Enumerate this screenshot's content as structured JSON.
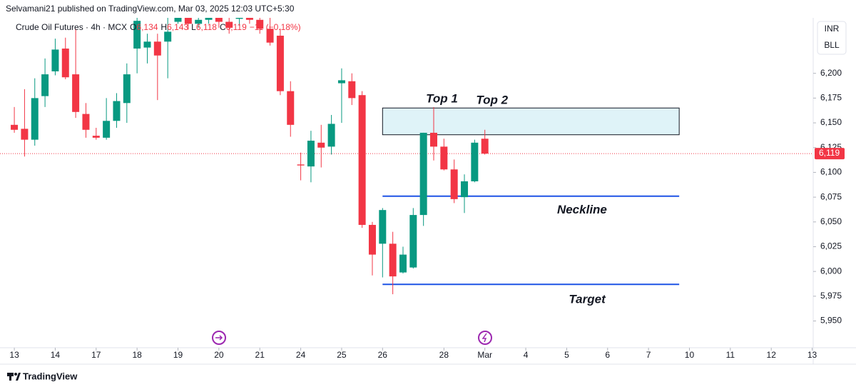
{
  "header": {
    "text": "Selvamani21 published on TradingView.com, Mar 03, 2025 12:03 UTC+5:30"
  },
  "footer": {
    "brand": "TradingView"
  },
  "scale_buttons": [
    "INR",
    "BLL"
  ],
  "chart_data": {
    "type": "candlestick",
    "legend": {
      "symbol": "Crude Oil Futures · 4h · MCX",
      "ohlc": [
        {
          "key": "O",
          "value": "6,134"
        },
        {
          "key": "H",
          "value": "6,143"
        },
        {
          "key": "L",
          "value": "6,118"
        },
        {
          "key": "C",
          "value": "6,119"
        }
      ],
      "change": "−11 (−0.18%)"
    },
    "up_color": "#089981",
    "down_color": "#f23645",
    "open": [
      6148,
      6144,
      6133,
      6177,
      6202,
      6225,
      6199,
      6159,
      6137,
      6135,
      6152,
      6170,
      6225,
      6226,
      6232,
      6232,
      6252,
      6256,
      6250,
      6254,
      6258,
      6252,
      6255,
      6257,
      6254,
      6245,
      6238,
      6182,
      6108,
      6106,
      6130,
      6126,
      6190,
      6192,
      6178,
      6047,
      6028,
      6028,
      5999,
      6004,
      6057,
      6140,
      6126,
      6103,
      6075,
      6091,
      6134
    ],
    "high": [
      6166,
      6184,
      6195,
      6215,
      6235,
      6236,
      6245,
      6170,
      6145,
      6175,
      6180,
      6210,
      6262,
      6240,
      6240,
      6258,
      6262,
      6264,
      6262,
      6265,
      6262,
      6258,
      6262,
      6262,
      6260,
      6260,
      6245,
      6192,
      6120,
      6142,
      6148,
      6158,
      6205,
      6200,
      6182,
      6050,
      6064,
      6040,
      6025,
      6064,
      6140,
      6166,
      6134,
      6113,
      6098,
      6133,
      6143
    ],
    "low": [
      6140,
      6116,
      6127,
      6166,
      6198,
      6194,
      6155,
      6135,
      6133,
      6133,
      6145,
      6150,
      6200,
      6210,
      6173,
      6195,
      6250,
      6244,
      6246,
      6250,
      6246,
      6240,
      6248,
      6250,
      6240,
      6228,
      6178,
      6136,
      6092,
      6090,
      6105,
      6118,
      6150,
      6168,
      6044,
      5996,
      5994,
      5977,
      5998,
      6003,
      6046,
      6112,
      6102,
      6069,
      6059,
      6090,
      6118
    ],
    "close": [
      6143,
      6133,
      6175,
      6199,
      6224,
      6196,
      6161,
      6143,
      6135,
      6152,
      6172,
      6199,
      6253,
      6232,
      6218,
      6242,
      6256,
      6250,
      6254,
      6258,
      6252,
      6246,
      6257,
      6254,
      6245,
      6231,
      6182,
      6148,
      6107,
      6132,
      6125,
      6149,
      6193,
      6175,
      6047,
      6017,
      6062,
      5995,
      6017,
      6057,
      6140,
      6126,
      6103,
      6073,
      6091,
      6130,
      6119
    ],
    "xlim": [
      -1.4,
      78.1
    ],
    "xticks": [
      {
        "value": 0,
        "label": "13"
      },
      {
        "value": 4,
        "label": "14"
      },
      {
        "value": 8,
        "label": "17"
      },
      {
        "value": 12,
        "label": "18"
      },
      {
        "value": 16,
        "label": "19"
      },
      {
        "value": 20,
        "label": "20"
      },
      {
        "value": 24,
        "label": "21"
      },
      {
        "value": 28,
        "label": "24"
      },
      {
        "value": 32,
        "label": "25"
      },
      {
        "value": 36,
        "label": "26"
      },
      {
        "value": 42,
        "label": "28"
      },
      {
        "value": 46,
        "label": "Mar"
      },
      {
        "value": 50,
        "label": "4"
      },
      {
        "value": 54,
        "label": "5"
      },
      {
        "value": 58,
        "label": "6"
      },
      {
        "value": 62,
        "label": "7"
      },
      {
        "value": 66,
        "label": "10"
      },
      {
        "value": 70,
        "label": "11"
      },
      {
        "value": 74,
        "label": "12"
      },
      {
        "value": 78,
        "label": "13"
      }
    ],
    "ylim": [
      5923,
      6256
    ],
    "yticks": [
      {
        "value": 5950,
        "label": "5,950"
      },
      {
        "value": 5975,
        "label": "5,975"
      },
      {
        "value": 6000,
        "label": "6,000"
      },
      {
        "value": 6025,
        "label": "6,025"
      },
      {
        "value": 6050,
        "label": "6,050"
      },
      {
        "value": 6075,
        "label": "6,075"
      },
      {
        "value": 6100,
        "label": "6,100"
      },
      {
        "value": 6125,
        "label": "6,125"
      },
      {
        "value": 6150,
        "label": "6,150"
      },
      {
        "value": 6175,
        "label": "6,175"
      },
      {
        "value": 6200,
        "label": "6,200"
      }
    ],
    "last_price": {
      "value": 6119,
      "label": "6,119"
    },
    "zone": {
      "low": 6138,
      "high": 6165,
      "color": "#dff3f8"
    },
    "levels": [
      {
        "label": "Neckline",
        "value": 6076,
        "color": "#1e53e5"
      },
      {
        "label": "Target",
        "value": 5987,
        "color": "#1e53e5"
      }
    ],
    "annotations": [
      "Top 1",
      "Top 2"
    ]
  }
}
